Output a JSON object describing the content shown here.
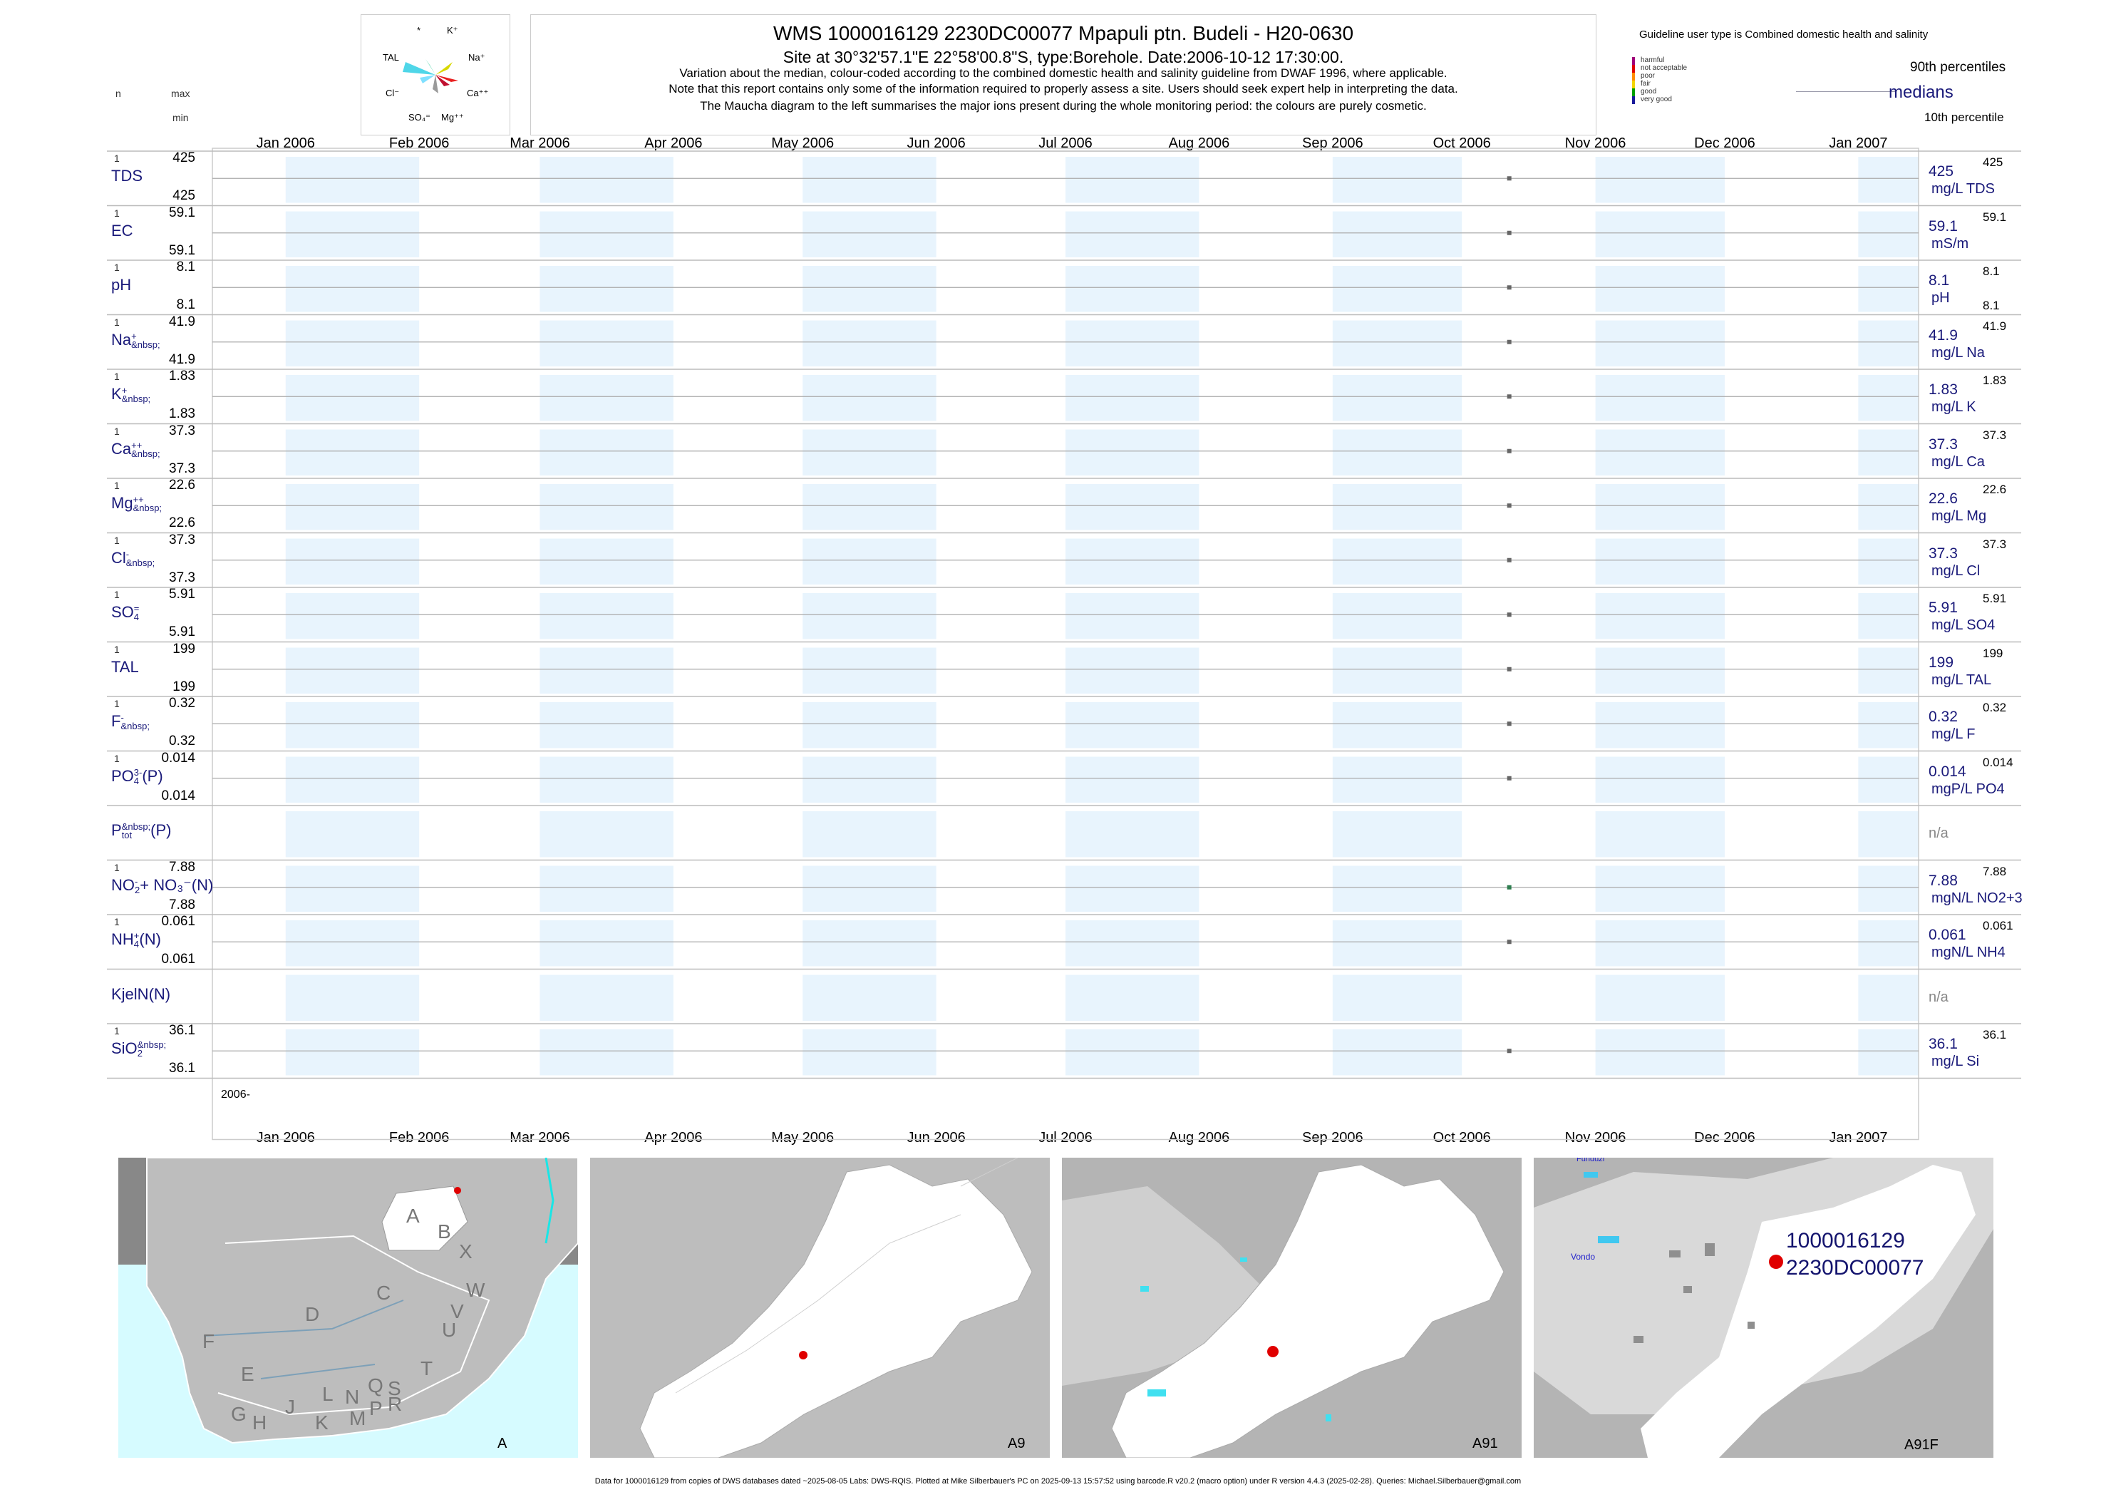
{
  "header": {
    "title": "WMS 1000016129 2230DC00077 Mpapuli ptn. Budeli - H20-0630",
    "subtitle": "Site at 30°32'57.1\"E 22°58'00.8\"S, type:Borehole. Date:2006-10-12 17:30:00.",
    "note1": "Variation about the median,  colour-coded according to the combined domestic health and salinity guideline from DWAF 1996, where applicable.",
    "note2": "Note that this report contains only some of the information required to properly assess a site. Users should seek expert help in interpreting the data.",
    "note3": "The Maucha diagram to the left summarises the major ions present during the whole monitoring period: the colours are purely cosmetic.",
    "col_n": "n",
    "col_max": "max",
    "col_min": "min"
  },
  "maucha": {
    "labels": [
      "*",
      "K⁺",
      "TAL",
      "Na⁺",
      "Cl⁻",
      "Ca⁺⁺",
      "SO₄⁼",
      "Mg⁺⁺"
    ]
  },
  "guideline": {
    "title": "Guideline user type is Combined domestic health and salinity",
    "levels": [
      {
        "label": "harmful",
        "color": "#a0007a"
      },
      {
        "label": "not acceptable",
        "color": "#e00000"
      },
      {
        "label": "poor",
        "color": "#ff8c00"
      },
      {
        "label": "fair",
        "color": "#f2d500"
      },
      {
        "label": "good",
        "color": "#00a000"
      },
      {
        "label": "very good",
        "color": "#1a1a9a"
      }
    ],
    "p90": "90th percentiles",
    "medians": "medians",
    "p10": "10th percentile"
  },
  "chart_data": {
    "type": "scatter",
    "x_axis": {
      "range": [
        "2005-12-15",
        "2007-01-15"
      ],
      "tick_labels": [
        "Jan 2006",
        "Feb 2006",
        "Mar 2006",
        "Apr 2006",
        "May 2006",
        "Jun 2006",
        "Jul 2006",
        "Aug 2006",
        "Sep 2006",
        "Oct 2006",
        "Nov 2006",
        "Dec 2006",
        "Jan 2007"
      ],
      "tick_dates": [
        "2006-01-01",
        "2006-02-01",
        "2006-03-01",
        "2006-04-01",
        "2006-05-01",
        "2006-06-01",
        "2006-07-01",
        "2006-08-01",
        "2006-09-01",
        "2006-10-01",
        "2006-11-01",
        "2006-12-01",
        "2007-01-01"
      ],
      "year_label": "2006-"
    },
    "sample_date": "2006-10-12",
    "rows": [
      {
        "name": "TDS",
        "n": "1",
        "max": "425",
        "min": "425",
        "median": "425",
        "p90": "425",
        "p10": "",
        "unit": "mg/L TDS",
        "value": 425,
        "color": "#666666"
      },
      {
        "name": "EC",
        "n": "1",
        "max": "59.1",
        "min": "59.1",
        "median": "59.1",
        "p90": "59.1",
        "p10": "",
        "unit": "mS/m",
        "value": 59.1,
        "color": "#666666"
      },
      {
        "name": "pH",
        "n": "1",
        "max": "8.1",
        "min": "8.1",
        "median": "8.1",
        "p90": "8.1",
        "p10": "8.1",
        "unit": "pH",
        "value": 8.1,
        "color": "#666666"
      },
      {
        "name": "Na",
        "sup": "+",
        "n": "1",
        "max": "41.9",
        "min": "41.9",
        "median": "41.9",
        "p90": "41.9",
        "p10": "",
        "unit": "mg/L Na",
        "value": 41.9,
        "color": "#666666"
      },
      {
        "name": "K",
        "sup": "+",
        "n": "1",
        "max": "1.83",
        "min": "1.83",
        "median": "1.83",
        "p90": "1.83",
        "p10": "",
        "unit": "mg/L K",
        "value": 1.83,
        "color": "#666666"
      },
      {
        "name": "Ca",
        "sup": "++",
        "n": "1",
        "max": "37.3",
        "min": "37.3",
        "median": "37.3",
        "p90": "37.3",
        "p10": "",
        "unit": "mg/L Ca",
        "value": 37.3,
        "color": "#666666"
      },
      {
        "name": "Mg",
        "sup": "++",
        "n": "1",
        "max": "22.6",
        "min": "22.6",
        "median": "22.6",
        "p90": "22.6",
        "p10": "",
        "unit": "mg/L Mg",
        "value": 22.6,
        "color": "#666666"
      },
      {
        "name": "Cl",
        "sup": "-",
        "n": "1",
        "max": "37.3",
        "min": "37.3",
        "median": "37.3",
        "p90": "37.3",
        "p10": "",
        "unit": "mg/L Cl",
        "value": 37.3,
        "color": "#666666"
      },
      {
        "name": "SO",
        "sub": "4",
        "sup": "=",
        "n": "1",
        "max": "5.91",
        "min": "5.91",
        "median": "5.91",
        "p90": "5.91",
        "p10": "",
        "unit": "mg/L SO4",
        "value": 5.91,
        "color": "#666666"
      },
      {
        "name": "TAL",
        "n": "1",
        "max": "199",
        "min": "199",
        "median": "199",
        "p90": "199",
        "p10": "",
        "unit": "mg/L TAL",
        "value": 199,
        "color": "#666666"
      },
      {
        "name": "F",
        "sup": "-",
        "n": "1",
        "max": "0.32",
        "min": "0.32",
        "median": "0.32",
        "p90": "0.32",
        "p10": "",
        "unit": "mg/L F",
        "value": 0.32,
        "color": "#666666"
      },
      {
        "name": "PO",
        "sub": "4",
        "sup": "3-",
        "suffix": "(P)",
        "n": "1",
        "max": "0.014",
        "min": "0.014",
        "median": "0.014",
        "p90": "0.014",
        "p10": "",
        "unit": "mgP/L PO4",
        "value": 0.014,
        "color": "#666666"
      },
      {
        "name": "P",
        "sub": "tot",
        "suffix": "(P)",
        "n": "",
        "max": "",
        "min": "",
        "median": "n/a",
        "p90": "",
        "p10": "",
        "unit": "",
        "value": null,
        "color": "#666666"
      },
      {
        "name": "NO",
        "sub": "2",
        "sup": "-",
        "suffix": "+ NO₃⁻(N)",
        "n": "1",
        "max": "7.88",
        "min": "7.88",
        "median": "7.88",
        "p90": "7.88",
        "p10": "",
        "unit": "mgN/L NO2+3",
        "value": 7.88,
        "color": "#2e7d4f"
      },
      {
        "name": "NH",
        "sub": "4",
        "sup": "+",
        "suffix": "(N)",
        "n": "1",
        "max": "0.061",
        "min": "0.061",
        "median": "0.061",
        "p90": "0.061",
        "p10": "",
        "unit": "mgN/L NH4",
        "value": 0.061,
        "color": "#666666"
      },
      {
        "name": "KjelN(N)",
        "n": "",
        "max": "",
        "min": "",
        "median": "n/a",
        "p90": "",
        "p10": "",
        "unit": "",
        "value": null,
        "color": "#666666"
      },
      {
        "name": "SiO",
        "sub": "2",
        "n": "1",
        "max": "36.1",
        "min": "36.1",
        "median": "36.1",
        "p90": "36.1",
        "p10": "",
        "unit": "mg/L Si",
        "value": 36.1,
        "color": "#666666"
      }
    ]
  },
  "maps": [
    {
      "label": "A",
      "regions": [
        "A",
        "B",
        "X",
        "C",
        "W",
        "V",
        "D",
        "U",
        "F",
        "T",
        "E",
        "L",
        "N",
        "Q",
        "S",
        "R",
        "G",
        "H",
        "J",
        "K",
        "M",
        "P"
      ]
    },
    {
      "label": "A9"
    },
    {
      "label": "A91"
    },
    {
      "label": "A91F",
      "site_line1": "1000016129",
      "site_line2": "2230DC00077",
      "place": "Vondo",
      "place_top": "Funduzi"
    }
  ],
  "footer": "Data for 1000016129 from copies of DWS databases dated ~2025-08-05 Labs: DWS-RQIS. Plotted at Mike Silberbauer's PC on 2025-09-13 15:57:52 using barcode.R v20.2 (macro option) under R version 4.4.3 (2025-02-28). Queries: Michael.Silberbauer@gmail.com"
}
